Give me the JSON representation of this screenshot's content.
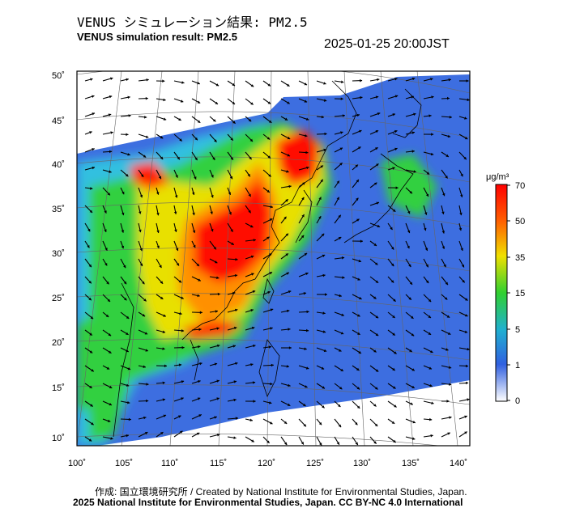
{
  "title_jp": "VENUS シミュレーション結果: PM2.5",
  "title_en": "VENUS simulation result: PM2.5",
  "timestamp": "2025-01-25 20:00JST",
  "credit_line1": "作成: 国立環境研究所 / Created by National Institute for Environmental Studies, Japan.",
  "credit_line2": "2025 National Institute for Environmental Studies, Japan. CC BY-NC 4.0 International",
  "map": {
    "lon_ticks": [
      "100˚",
      "105˚",
      "110˚",
      "115˚",
      "120˚",
      "125˚",
      "130˚",
      "135˚",
      "140˚"
    ],
    "lat_ticks": [
      "50˚",
      "45˚",
      "40˚",
      "35˚",
      "30˚",
      "25˚",
      "20˚",
      "15˚",
      "10˚"
    ]
  },
  "colorbar": {
    "unit": "μg/m³",
    "labels": [
      "70",
      "50",
      "35",
      "15",
      "5",
      "1",
      "0"
    ],
    "colors": [
      "#ff0000",
      "#ff8000",
      "#e0e000",
      "#40d040",
      "#20a0e0",
      "#4060e0",
      "#ffffff"
    ]
  }
}
